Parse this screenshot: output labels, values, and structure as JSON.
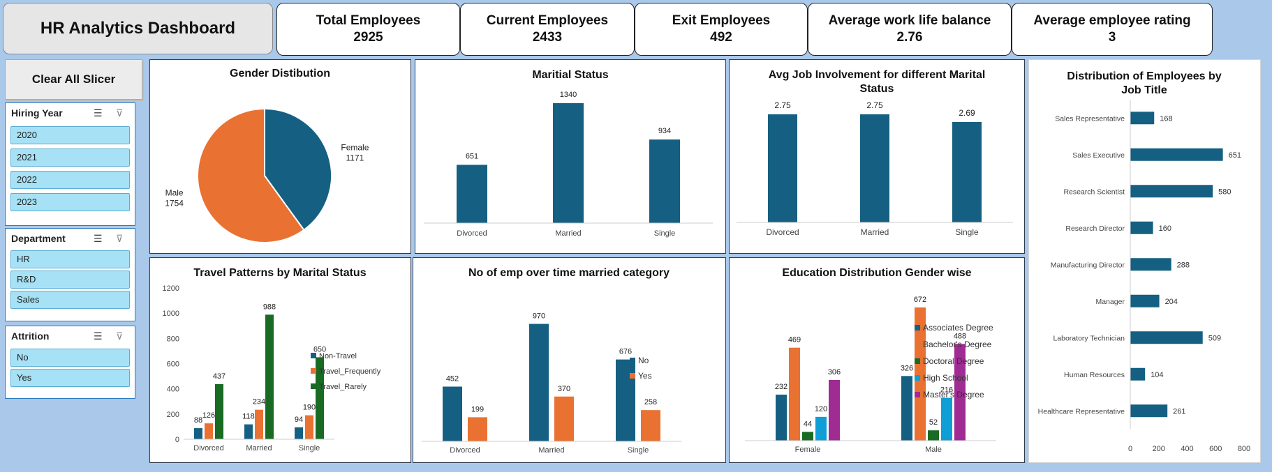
{
  "header": {
    "title": "HR Analytics Dashboard"
  },
  "kpis": [
    {
      "label": "Total Employees",
      "value": "2925"
    },
    {
      "label": "Current Employees",
      "value": "2433"
    },
    {
      "label": "Exit Employees",
      "value": "492"
    },
    {
      "label": "Average work life balance",
      "value": "2.76"
    },
    {
      "label": "Average employee rating",
      "value": "3"
    }
  ],
  "sidebar": {
    "clear_label": "Clear All Slicer",
    "slicers": [
      {
        "title": "Hiring Year",
        "items": [
          "2020",
          "2021",
          "2022",
          "2023"
        ]
      },
      {
        "title": "Department",
        "items": [
          "HR",
          "R&D",
          "Sales"
        ]
      },
      {
        "title": "Attrition",
        "items": [
          "No",
          "Yes"
        ]
      }
    ]
  },
  "colors": {
    "blue": "#156082",
    "orange": "#e97132",
    "green": "#196b24",
    "cyan": "#0f9ed5",
    "purple": "#a02b93"
  },
  "chart_data": [
    {
      "type": "pie",
      "title": "Gender Distibution",
      "categories": [
        "Female",
        "Male"
      ],
      "values": [
        1171,
        1754
      ]
    },
    {
      "type": "bar",
      "title": "Maritial Status",
      "categories": [
        "Divorced",
        "Married",
        "Single"
      ],
      "values": [
        651,
        1340,
        934
      ]
    },
    {
      "type": "bar",
      "title": "Avg Job Involvement for different Marital Status",
      "categories": [
        "Divorced",
        "Married",
        "Single"
      ],
      "values": [
        2.75,
        2.75,
        2.69
      ]
    },
    {
      "type": "bar",
      "title": "Distribution of Employees by Job Title",
      "orientation": "horizontal",
      "categories": [
        "Sales Representative",
        "Sales Executive",
        "Research Scientist",
        "Research Director",
        "Manufacturing Director",
        "Manager",
        "Laboratory Technician",
        "Human Resources",
        "Healthcare Representative"
      ],
      "values": [
        168,
        651,
        580,
        160,
        288,
        204,
        509,
        104,
        261
      ],
      "xticks": [
        "0",
        "200",
        "400",
        "600",
        "800"
      ],
      "xlim": [
        0,
        800
      ]
    },
    {
      "type": "bar",
      "title": "Travel Patterns by Marital Status",
      "categories": [
        "Divorced",
        "Married",
        "Single"
      ],
      "series": [
        {
          "name": "Non-Travel",
          "values": [
            88,
            118,
            94
          ]
        },
        {
          "name": "Travel_Frequently",
          "values": [
            126,
            234,
            190
          ]
        },
        {
          "name": "Travel_Rarely",
          "values": [
            437,
            988,
            650
          ]
        }
      ],
      "yticks": [
        "0",
        "200",
        "400",
        "600",
        "800",
        "1000",
        "1200"
      ],
      "ylim": [
        0,
        1200
      ],
      "legend": "right"
    },
    {
      "type": "bar",
      "title": "No of emp over time married category",
      "categories": [
        "Divorced",
        "Married",
        "Single"
      ],
      "series": [
        {
          "name": "No",
          "values": [
            452,
            970,
            676
          ]
        },
        {
          "name": "Yes",
          "values": [
            199,
            370,
            258
          ]
        }
      ],
      "legend": "right"
    },
    {
      "type": "bar",
      "title": "Education Distribution Gender wise",
      "categories": [
        "Female",
        "Male"
      ],
      "series": [
        {
          "name": "Associates Degree",
          "values": [
            232,
            326
          ]
        },
        {
          "name": "Bachelor's Degree",
          "values": [
            469,
            672
          ]
        },
        {
          "name": "Doctoral Degree",
          "values": [
            44,
            52
          ]
        },
        {
          "name": "High School",
          "values": [
            120,
            216
          ]
        },
        {
          "name": "Master's Degree",
          "values": [
            306,
            488
          ]
        }
      ],
      "legend": "right"
    }
  ]
}
